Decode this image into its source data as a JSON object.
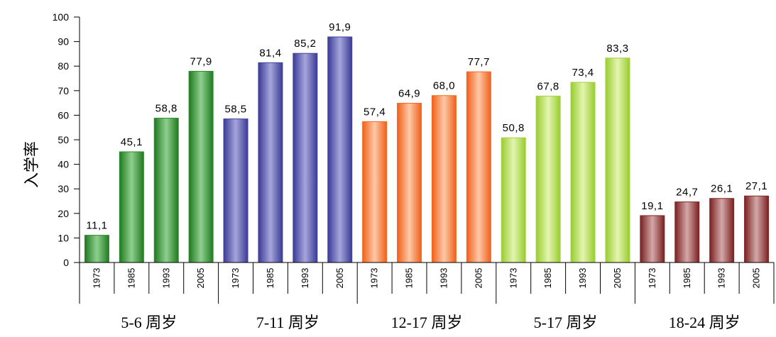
{
  "chart_data": {
    "type": "bar",
    "ylabel": "入学率",
    "ylim": [
      0,
      100
    ],
    "yticks": [
      "0",
      "10",
      "20",
      "30",
      "40",
      "50",
      "60",
      "70",
      "80",
      "90",
      "100"
    ],
    "years": [
      "1973",
      "1985",
      "1993",
      "2005"
    ],
    "groups": [
      {
        "name": "5-6 周岁",
        "color": "green",
        "values": [
          11.1,
          45.1,
          58.8,
          77.9
        ],
        "labels": [
          "11,1",
          "45,1",
          "58,8",
          "77,9"
        ]
      },
      {
        "name": "7-11 周岁",
        "color": "blue",
        "values": [
          58.5,
          81.4,
          85.2,
          91.9
        ],
        "labels": [
          "58,5",
          "81,4",
          "85,2",
          "91,9"
        ]
      },
      {
        "name": "12-17 周岁",
        "color": "orange",
        "values": [
          57.4,
          64.9,
          68.0,
          77.7
        ],
        "labels": [
          "57,4",
          "64,9",
          "68,0",
          "77,7"
        ]
      },
      {
        "name": "5-17 周岁",
        "color": "lime",
        "values": [
          50.8,
          67.8,
          73.4,
          83.3
        ],
        "labels": [
          "50,8",
          "67,8",
          "73,4",
          "83,3"
        ]
      },
      {
        "name": "18-24 周岁",
        "color": "maroon",
        "values": [
          19.1,
          24.7,
          26.1,
          27.1
        ],
        "labels": [
          "19,1",
          "24,7",
          "26,1",
          "27,1"
        ]
      }
    ],
    "grid": false,
    "legend": "none"
  },
  "colors": {
    "green": [
      "#1f7a1f",
      "#8fcf8f",
      "#2e8b2e"
    ],
    "blue": [
      "#3a3a96",
      "#a6a6dc",
      "#44449e"
    ],
    "orange": [
      "#f0601a",
      "#ffc9a8",
      "#f46a20"
    ],
    "lime": [
      "#98cc30",
      "#e4f5b0",
      "#a2d43c"
    ],
    "maroon": [
      "#7a2020",
      "#d4a8a8",
      "#852828"
    ]
  }
}
